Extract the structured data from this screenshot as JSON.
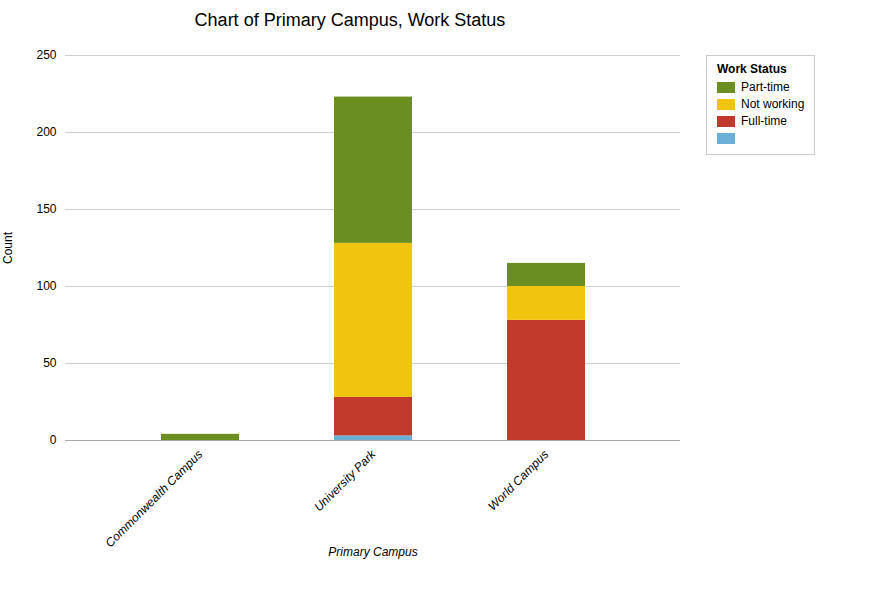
{
  "chart_data": {
    "type": "bar",
    "stacked": true,
    "title": "Chart of Primary Campus, Work Status",
    "xlabel": "Primary Campus",
    "ylabel": "Count",
    "categories": [
      "Commonwealth Campus",
      "University Park",
      "World Campus"
    ],
    "series": [
      {
        "name": null,
        "color": "#6baed6",
        "values": [
          0,
          3,
          0
        ]
      },
      {
        "name": "Full-time",
        "color": "#c0392b",
        "values": [
          0,
          25,
          78
        ]
      },
      {
        "name": "Not working",
        "color": "#f1c40f",
        "values": [
          0,
          100,
          22
        ]
      },
      {
        "name": "Part-time",
        "color": "#6b8e23",
        "values": [
          4,
          95,
          15
        ]
      }
    ],
    "ylim": [
      0,
      250
    ],
    "yticks": [
      0,
      50,
      100,
      150,
      200,
      250
    ],
    "grid": true,
    "legend": "right",
    "legend_title": "Work Status"
  }
}
